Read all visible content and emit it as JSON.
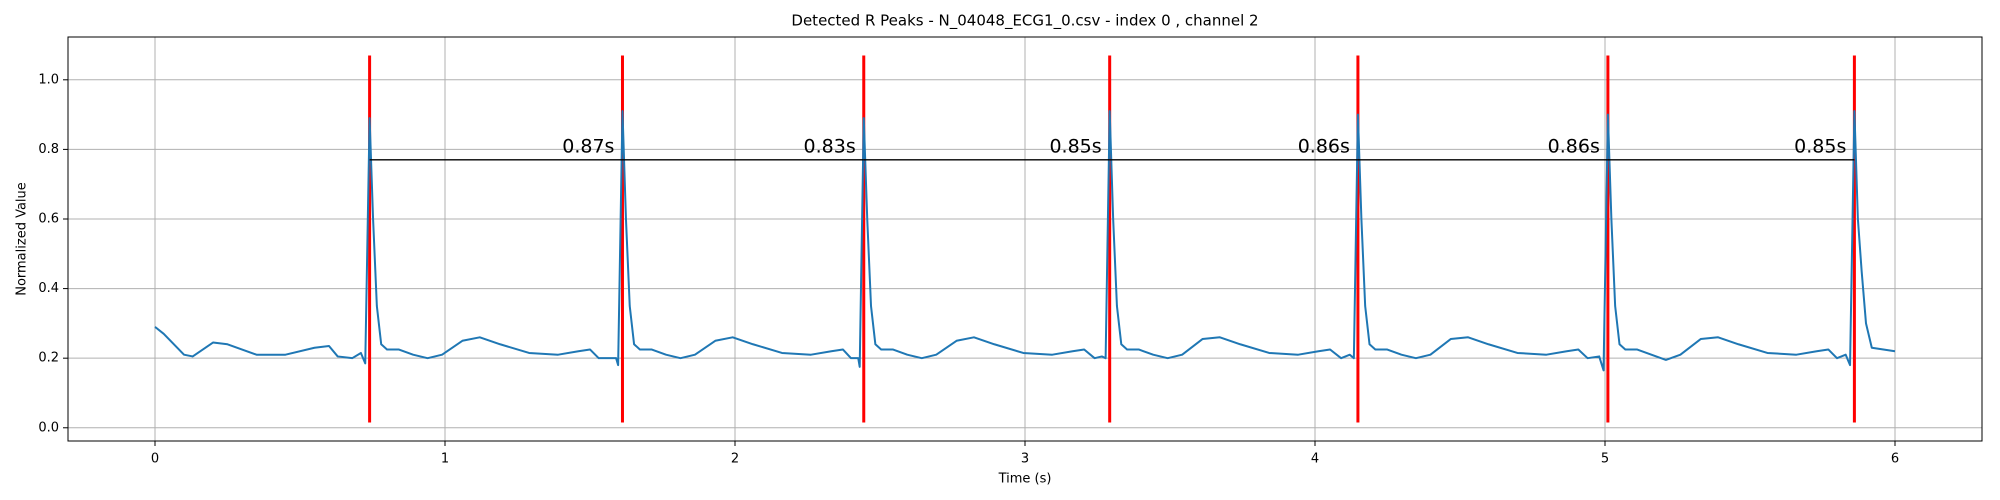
{
  "chart_data": {
    "type": "line",
    "title": "Detected R Peaks - N_04048_ECG1_0.csv - index 0 , channel 2",
    "x_label": "Time (s)",
    "y_label": "Normalized Value",
    "xlim": [
      -0.3,
      6.3
    ],
    "ylim": [
      -0.038,
      1.123
    ],
    "xticks": [
      0,
      1,
      2,
      3,
      4,
      5,
      6
    ],
    "yticks": [
      {
        "value": 0,
        "label": "0.0"
      },
      0.2,
      0.4,
      0.6,
      0.8,
      {
        "value": 1,
        "label": "1.0"
      }
    ],
    "grid": true,
    "color": "#1f77b4",
    "x": [
      0,
      0.03,
      0.1,
      0.13,
      0.2,
      0.25,
      0.35,
      0.45,
      0.55,
      0.6,
      0.63,
      0.68,
      0.71,
      0.725,
      0.74,
      0.752,
      0.765,
      0.78,
      0.8,
      0.84,
      0.89,
      0.94,
      0.99,
      1.06,
      1.12,
      1.19,
      1.29,
      1.39,
      1.46,
      1.5,
      1.53,
      1.59,
      1.597,
      1.612,
      1.624,
      1.637,
      1.652,
      1.672,
      1.712,
      1.762,
      1.812,
      1.862,
      1.932,
      1.992,
      2.062,
      2.162,
      2.262,
      2.332,
      2.372,
      2.4,
      2.425,
      2.43,
      2.444,
      2.456,
      2.469,
      2.484,
      2.504,
      2.544,
      2.594,
      2.644,
      2.694,
      2.764,
      2.824,
      2.894,
      2.994,
      3.094,
      3.164,
      3.204,
      3.24,
      3.265,
      3.278,
      3.292,
      3.304,
      3.317,
      3.332,
      3.352,
      3.392,
      3.442,
      3.492,
      3.542,
      3.612,
      3.672,
      3.742,
      3.842,
      3.942,
      4.012,
      4.052,
      4.09,
      4.12,
      4.134,
      4.148,
      4.16,
      4.173,
      4.188,
      4.208,
      4.248,
      4.298,
      4.348,
      4.398,
      4.468,
      4.528,
      4.598,
      4.698,
      4.798,
      4.868,
      4.908,
      4.94,
      4.98,
      4.995,
      5.01,
      5.022,
      5.035,
      5.05,
      5.07,
      5.11,
      5.16,
      5.21,
      5.26,
      5.33,
      5.39,
      5.46,
      5.56,
      5.66,
      5.73,
      5.77,
      5.8,
      5.83,
      5.845,
      5.86,
      5.872,
      5.885,
      5.9,
      5.92,
      5.96,
      6.0
    ],
    "values": [
      0.29,
      0.27,
      0.21,
      0.205,
      0.245,
      0.24,
      0.21,
      0.21,
      0.23,
      0.235,
      0.205,
      0.2,
      0.215,
      0.185,
      0.89,
      0.6,
      0.35,
      0.24,
      0.225,
      0.225,
      0.21,
      0.2,
      0.21,
      0.25,
      0.26,
      0.24,
      0.215,
      0.21,
      0.22,
      0.225,
      0.2,
      0.2,
      0.18,
      0.91,
      0.6,
      0.35,
      0.24,
      0.225,
      0.225,
      0.21,
      0.2,
      0.21,
      0.25,
      0.26,
      0.24,
      0.215,
      0.21,
      0.22,
      0.225,
      0.2,
      0.2,
      0.175,
      0.89,
      0.6,
      0.35,
      0.24,
      0.225,
      0.225,
      0.21,
      0.2,
      0.21,
      0.25,
      0.26,
      0.24,
      0.215,
      0.21,
      0.22,
      0.225,
      0.2,
      0.205,
      0.2,
      0.91,
      0.6,
      0.35,
      0.24,
      0.225,
      0.225,
      0.21,
      0.2,
      0.21,
      0.255,
      0.26,
      0.24,
      0.215,
      0.21,
      0.22,
      0.225,
      0.2,
      0.21,
      0.2,
      0.9,
      0.6,
      0.35,
      0.24,
      0.225,
      0.225,
      0.21,
      0.2,
      0.21,
      0.255,
      0.26,
      0.24,
      0.215,
      0.21,
      0.22,
      0.225,
      0.2,
      0.205,
      0.165,
      0.9,
      0.6,
      0.35,
      0.24,
      0.225,
      0.225,
      0.21,
      0.195,
      0.21,
      0.255,
      0.26,
      0.24,
      0.215,
      0.21,
      0.22,
      0.225,
      0.2,
      0.21,
      0.18,
      0.91,
      0.6,
      0.45,
      0.3,
      0.23,
      0.225,
      0.22
    ],
    "peaks": {
      "x": [
        0.74,
        1.612,
        2.444,
        3.292,
        4.148,
        5.01,
        5.86
      ],
      "ymin": 0.015,
      "ymax": 1.07,
      "color": "#ff0000"
    },
    "intervals": {
      "y": 0.77,
      "color": "#000000",
      "values": [
        0.872,
        0.832,
        0.848,
        0.856,
        0.862,
        0.85
      ],
      "value_labels": [
        "0.87s",
        "0.83s",
        "0.85s",
        "0.86s",
        "0.86s",
        "0.85s"
      ]
    }
  }
}
